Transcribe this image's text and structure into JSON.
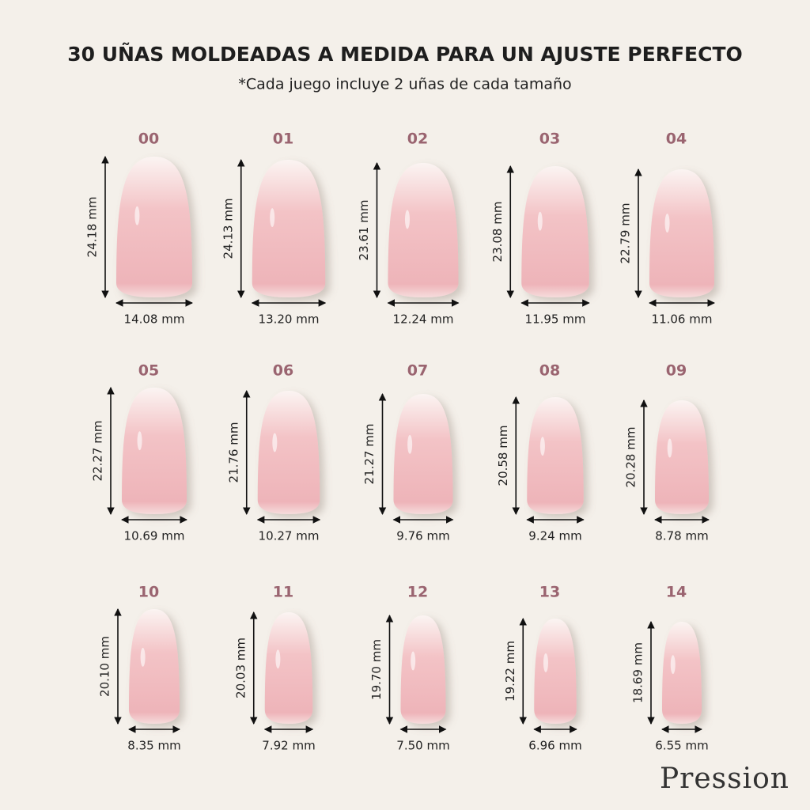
{
  "header": {
    "title": "30 UÑAS MOLDEADAS A MEDIDA PARA UN AJUSTE PERFECTO",
    "subtitle": "*Cada juego incluye 2 uñas de cada tamaño"
  },
  "sizes": [
    {
      "label": "00",
      "height": "24.18 mm",
      "width": "14.08 mm"
    },
    {
      "label": "01",
      "height": "24.13 mm",
      "width": "13.20 mm"
    },
    {
      "label": "02",
      "height": "23.61 mm",
      "width": "12.24 mm"
    },
    {
      "label": "03",
      "height": "23.08 mm",
      "width": "11.95 mm"
    },
    {
      "label": "04",
      "height": "22.79 mm",
      "width": "11.06 mm"
    },
    {
      "label": "05",
      "height": "22.27 mm",
      "width": "10.69 mm"
    },
    {
      "label": "06",
      "height": "21.76 mm",
      "width": "10.27 mm"
    },
    {
      "label": "07",
      "height": "21.27 mm",
      "width": "9.76 mm"
    },
    {
      "label": "08",
      "height": "20.58 mm",
      "width": "9.24 mm"
    },
    {
      "label": "09",
      "height": "20.28 mm",
      "width": "8.78 mm"
    },
    {
      "label": "10",
      "height": "20.10 mm",
      "width": "8.35 mm"
    },
    {
      "label": "11",
      "height": "20.03 mm",
      "width": "7.92 mm"
    },
    {
      "label": "12",
      "height": "19.70 mm",
      "width": "7.50 mm"
    },
    {
      "label": "13",
      "height": "19.22 mm",
      "width": "6.96 mm"
    },
    {
      "label": "14",
      "height": "18.69 mm",
      "width": "6.55 mm"
    }
  ],
  "brand": "Pression"
}
